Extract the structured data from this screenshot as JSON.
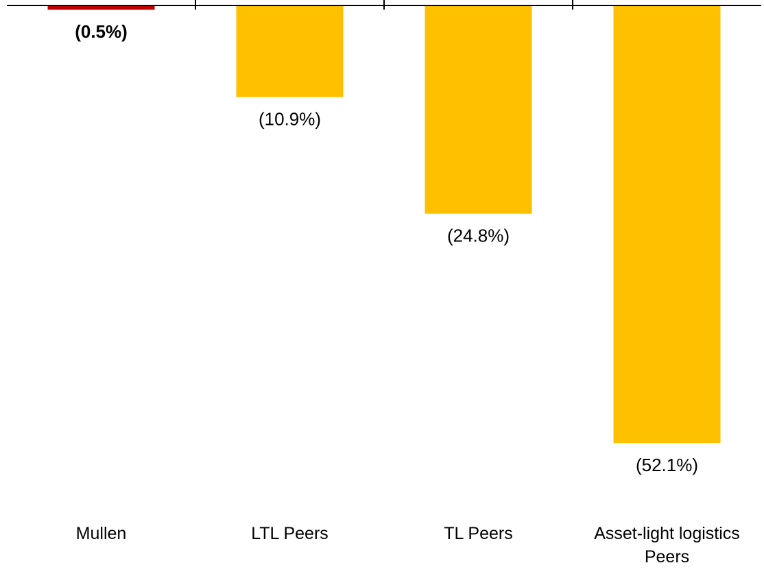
{
  "chart_data": {
    "type": "bar",
    "categories": [
      "Mullen",
      "LTL Peers",
      "TL Peers",
      "Asset-light logistics Peers"
    ],
    "values": [
      -0.5,
      -10.9,
      -24.8,
      -52.1
    ],
    "value_labels": [
      "(0.5%)",
      "(10.9%)",
      "(24.8%)",
      "(52.1%)"
    ],
    "colors": [
      "#c00000",
      "#ffc000",
      "#ffc000",
      "#ffc000"
    ],
    "ylim": [
      -52.1,
      0
    ]
  }
}
